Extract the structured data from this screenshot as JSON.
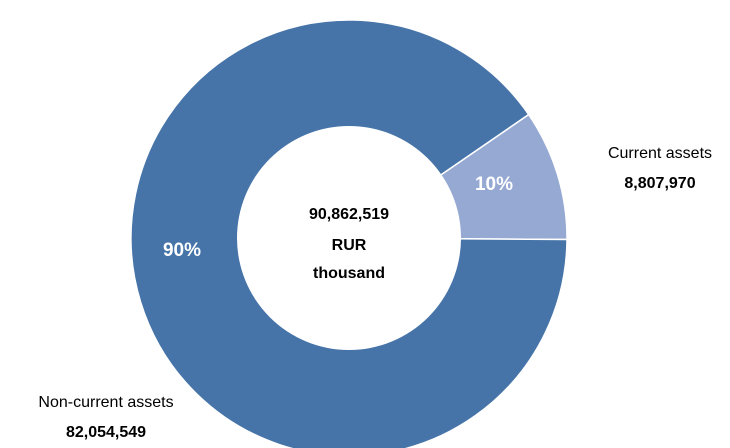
{
  "chart_data": {
    "type": "pie",
    "donut": true,
    "center_label": [
      "90,862,519",
      "RUR",
      "thousand"
    ],
    "unit": "RUR thousand",
    "total": 90862519,
    "categories": [
      "Current assets",
      "Non-current assets"
    ],
    "values": [
      8807970,
      82054549
    ],
    "value_labels": [
      "8,807,970",
      "82,054,549"
    ],
    "percent_labels": [
      "10%",
      "90%"
    ],
    "colors": [
      "#95a9d3",
      "#4674a8"
    ],
    "legend": "none"
  }
}
